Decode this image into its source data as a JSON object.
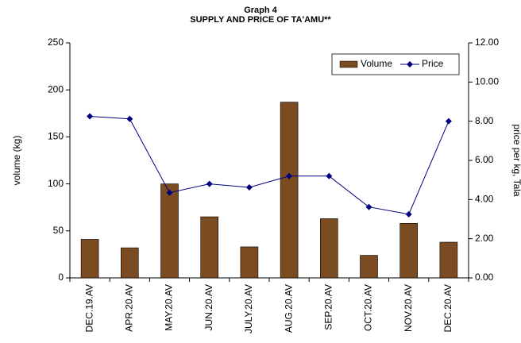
{
  "chart_data": {
    "type": "bar-line",
    "title": "Graph 4",
    "subtitle": "SUPPLY AND PRICE OF TA'AMU**",
    "ylabel": "volume (kg)",
    "y2label": "price per kg, Tala",
    "categories": [
      "DEC.19.AV",
      "APR.20.AV",
      "MAY.20.AV",
      "JUN.20.AV",
      "JULY.20.AV",
      "AUG.20.AV",
      "SEP.20.AV",
      "OCT.20.AV",
      "NOV.20.AV",
      "DEC.20.AV"
    ],
    "series": [
      {
        "name": "Volume",
        "color": "#7b4b22",
        "values": [
          41,
          32,
          100,
          65,
          33,
          187,
          63,
          24,
          58,
          38
        ]
      },
      {
        "name": "Price",
        "color": "#000080",
        "axis": "y2",
        "values": [
          8.25,
          8.12,
          4.35,
          4.8,
          4.62,
          5.2,
          5.2,
          3.62,
          3.25,
          8.0
        ]
      }
    ],
    "ylim": [
      0,
      250
    ],
    "yticks": [
      0,
      50,
      100,
      150,
      200,
      250
    ],
    "y2lim": [
      0,
      12
    ],
    "y2ticks": [
      {
        "value": 0,
        "label": "0.00"
      },
      {
        "value": 2,
        "label": "2.00"
      },
      {
        "value": 4,
        "label": "4.00"
      },
      {
        "value": 6,
        "label": "6.00"
      },
      {
        "value": 8,
        "label": "8.00"
      },
      {
        "value": 10,
        "label": "10.00"
      },
      {
        "value": 12,
        "label": "12.00"
      }
    ],
    "legend": "top-right"
  }
}
